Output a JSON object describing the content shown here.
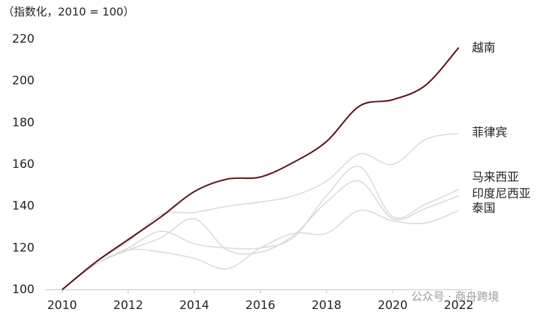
{
  "chart_data": {
    "type": "line",
    "subtitle": "（指数化，2010 = 100）",
    "x": [
      2010,
      2011,
      2012,
      2013,
      2014,
      2015,
      2016,
      2017,
      2018,
      2019,
      2020,
      2021,
      2022
    ],
    "xlim": [
      2009.5,
      2022.4
    ],
    "xticks": [
      2010,
      2012,
      2014,
      2016,
      2018,
      2020,
      2022
    ],
    "ylim": [
      100,
      220
    ],
    "yticks": [
      100,
      120,
      140,
      160,
      180,
      200,
      220
    ],
    "series": [
      {
        "name": "菲律宾",
        "color": "#d9d9d9",
        "values": [
          100,
          113,
          123,
          136,
          137,
          140,
          142,
          145,
          152,
          165,
          160,
          172,
          175
        ]
      },
      {
        "name": "马来西亚",
        "color": "#d9d9d9",
        "values": [
          100,
          112,
          120,
          128,
          122,
          120,
          120,
          125,
          145,
          159,
          135,
          141,
          148
        ]
      },
      {
        "name": "印度尼西亚",
        "color": "#d9d9d9",
        "values": [
          100,
          112,
          119,
          125,
          134,
          119,
          118,
          126,
          142,
          152,
          134,
          139,
          145
        ]
      },
      {
        "name": "泰国",
        "color": "#d9d9d9",
        "values": [
          100,
          112,
          119,
          118,
          115,
          110,
          120,
          127,
          127,
          138,
          133,
          132,
          138
        ]
      },
      {
        "name": "越南",
        "color": "#5b1a1e",
        "values": [
          100,
          113,
          124,
          135,
          147,
          153,
          154,
          161,
          171,
          188,
          191,
          198,
          216
        ]
      }
    ],
    "watermark": "公众号 · 商舟跨境"
  }
}
